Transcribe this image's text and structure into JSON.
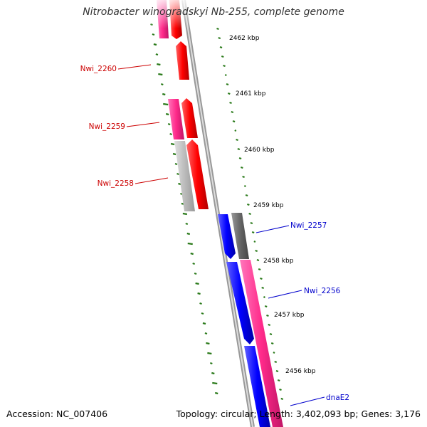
{
  "title": "Nitrobacter winogradskyi Nb-255, complete genome",
  "footer": {
    "accession": "Accession: NC_007406",
    "summary": "Topology: circular; Length: 3,402,093 bp; Genes: 3,176"
  },
  "scale": {
    "unit": "kbp",
    "ticks": [
      {
        "kbp": 2462,
        "label": "2462 kbp"
      },
      {
        "kbp": 2461,
        "label": "2461 kbp"
      },
      {
        "kbp": 2460,
        "label": "2460 kbp"
      },
      {
        "kbp": 2459,
        "label": "2459 kbp"
      },
      {
        "kbp": 2458,
        "label": "2458 kbp"
      },
      {
        "kbp": 2457,
        "label": "2457 kbp"
      },
      {
        "kbp": 2456,
        "label": "2456 kbp"
      }
    ]
  },
  "colors": {
    "forward_cds": "#ff0000",
    "forward_rna": "#ff3399",
    "reverse_cds": "#0000ff",
    "reverse_rna": "#ff3399",
    "pseudo": "#bbbbbb",
    "dark_feature": "#666666",
    "backbone": "#888888",
    "gc_ticks": "#2a7a1a",
    "label_forward": "#cc0000",
    "label_reverse": "#0000cc"
  },
  "gene_labels": [
    {
      "id": "Nwi_2260",
      "strand": "forward"
    },
    {
      "id": "Nwi_2259",
      "strand": "forward"
    },
    {
      "id": "Nwi_2258",
      "strand": "forward"
    },
    {
      "id": "Nwi_2257",
      "strand": "reverse"
    },
    {
      "id": "Nwi_2256",
      "strand": "reverse"
    },
    {
      "id": "dnaE2",
      "strand": "reverse"
    }
  ]
}
